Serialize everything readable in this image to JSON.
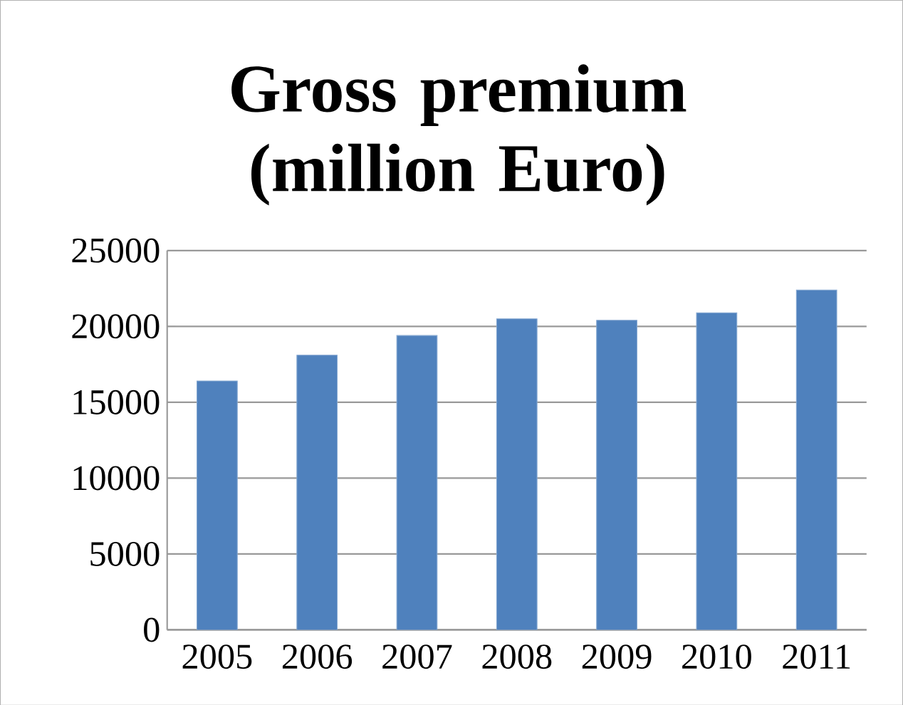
{
  "chart_data": {
    "type": "bar",
    "title": "Gross premium (million Euro)",
    "categories": [
      "2005",
      "2006",
      "2007",
      "2008",
      "2009",
      "2010",
      "2011"
    ],
    "values": [
      16400,
      18100,
      19400,
      20500,
      20400,
      20900,
      22400
    ],
    "color": "#4f81bd",
    "ylim": [
      0,
      25000
    ],
    "yticks": [
      0,
      5000,
      10000,
      15000,
      20000,
      25000
    ],
    "grid": "y"
  }
}
